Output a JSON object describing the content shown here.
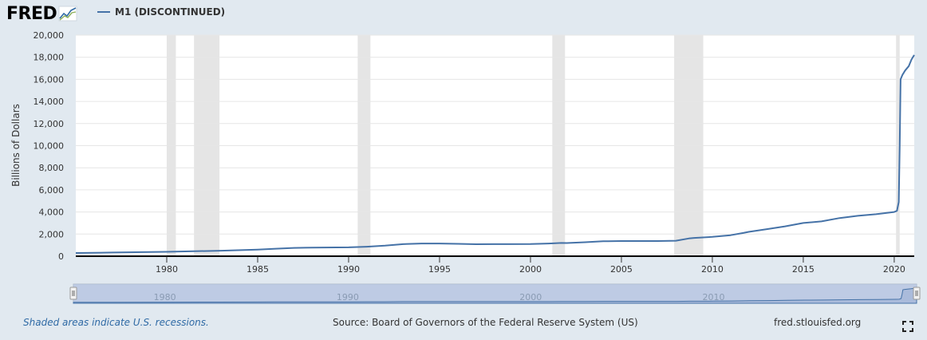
{
  "header": {
    "logo_text": "FRED",
    "logo_icon": "trend-chart-icon",
    "legend_label": "M1 (DISCONTINUED)",
    "series_color": "#4572a7"
  },
  "footer": {
    "recession_note": "Shaded areas indicate U.S. recessions.",
    "source": "Source: Board of Governors of the Federal Reserve System (US)",
    "site": "fred.stlouisfed.org",
    "expand_icon": "fullscreen-icon"
  },
  "chart_data": {
    "type": "line",
    "title": "",
    "xlabel": "",
    "ylabel": "Billions of Dollars",
    "xlim": [
      1975.0,
      2021.1
    ],
    "ylim": [
      0,
      20000
    ],
    "yticks": [
      0,
      2000,
      4000,
      6000,
      8000,
      10000,
      12000,
      14000,
      16000,
      18000,
      20000
    ],
    "ytick_labels": [
      "0",
      "2,000",
      "4,000",
      "6,000",
      "8,000",
      "10,000",
      "12,000",
      "14,000",
      "16,000",
      "18,000",
      "20,000"
    ],
    "xticks": [
      1980,
      1985,
      1990,
      1995,
      2000,
      2005,
      2010,
      2015,
      2020
    ],
    "xtick_labels": [
      "1980",
      "1985",
      "1990",
      "1995",
      "2000",
      "2005",
      "2010",
      "2015",
      "2020"
    ],
    "grid": true,
    "recessions": [
      [
        1980.0,
        1980.5
      ],
      [
        1981.5,
        1982.9
      ],
      [
        1990.5,
        1991.2
      ],
      [
        2001.2,
        2001.9
      ],
      [
        2007.9,
        2009.5
      ],
      [
        2020.1,
        2020.3
      ]
    ],
    "series": [
      {
        "name": "M1 (DISCONTINUED)",
        "color": "#4572a7",
        "x": [
          1975.0,
          1977.0,
          1980.0,
          1983.0,
          1985.0,
          1986.0,
          1987.0,
          1988.0,
          1990.0,
          1991.0,
          1992.0,
          1993.0,
          1994.0,
          1995.0,
          1996.0,
          1997.0,
          1998.0,
          2000.0,
          2001.0,
          2001.7,
          2002.0,
          2003.0,
          2004.0,
          2005.0,
          2007.0,
          2008.0,
          2008.7,
          2009.0,
          2010.0,
          2011.0,
          2011.7,
          2012.0,
          2013.0,
          2014.0,
          2015.0,
          2016.0,
          2017.0,
          2018.0,
          2019.0,
          2020.0,
          2020.15,
          2020.25,
          2020.3,
          2020.35,
          2020.45,
          2020.6,
          2020.8,
          2020.95,
          2021.1
        ],
        "values": [
          290,
          330,
          400,
          500,
          600,
          680,
          750,
          780,
          800,
          860,
          950,
          1090,
          1150,
          1150,
          1120,
          1080,
          1090,
          1100,
          1150,
          1200,
          1190,
          1260,
          1350,
          1370,
          1370,
          1400,
          1600,
          1650,
          1750,
          1900,
          2100,
          2200,
          2450,
          2700,
          3000,
          3150,
          3450,
          3650,
          3800,
          4000,
          4100,
          4900,
          10000,
          16000,
          16400,
          16800,
          17200,
          17800,
          18200
        ]
      }
    ],
    "navigator": {
      "xtick_labels": [
        "1980",
        "1990",
        "2000",
        "2010"
      ],
      "xticks": [
        1980,
        1990,
        2000,
        2010
      ],
      "selection": [
        1975.0,
        2021.1
      ]
    }
  }
}
